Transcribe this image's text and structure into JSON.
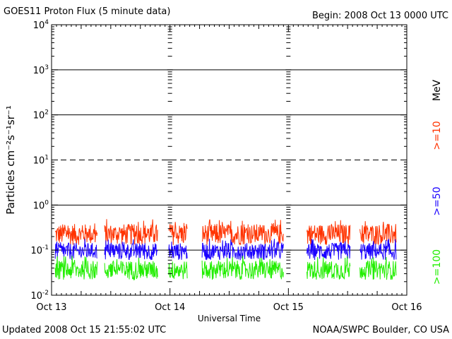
{
  "header": {
    "title": "GOES11 Proton Flux (5 minute data)",
    "begin": "Begin: 2008 Oct 13 0000 UTC"
  },
  "footer": {
    "updated": "Updated 2008 Oct 15 21:55:02 UTC",
    "credit": "NOAA/SWPC Boulder, CO USA"
  },
  "colors": {
    "ge10": "#ff3300",
    "ge50": "#1a00ff",
    "ge100": "#22ee00",
    "frame": "#000000"
  },
  "chart_data": {
    "type": "line",
    "title": "GOES11 Proton Flux (5 minute data)",
    "xlabel": "Universal Time",
    "ylabel": "Particles cm⁻²s⁻¹sr⁻¹",
    "y_scale": "log",
    "ylim": [
      0.01,
      10000
    ],
    "y_ticks": [
      {
        "value": 10000,
        "base": "10",
        "exp": "4"
      },
      {
        "value": 1000,
        "base": "10",
        "exp": "3"
      },
      {
        "value": 100,
        "base": "10",
        "exp": "2"
      },
      {
        "value": 10,
        "base": "10",
        "exp": "1"
      },
      {
        "value": 1,
        "base": "10",
        "exp": "0"
      },
      {
        "value": 0.1,
        "base": "10",
        "exp": "-1"
      },
      {
        "value": 0.01,
        "base": "10",
        "exp": "-2"
      }
    ],
    "xlim": [
      "2008-10-13",
      "2008-10-16"
    ],
    "x_ticks": [
      "Oct 13",
      "Oct 14",
      "Oct 15",
      "Oct 16"
    ],
    "reference_lines": [
      {
        "value": 1000,
        "style": "solid"
      },
      {
        "value": 100,
        "style": "solid"
      },
      {
        "value": 10,
        "style": "dashed"
      },
      {
        "value": 1,
        "style": "solid"
      },
      {
        "value": 0.1,
        "style": "solid"
      }
    ],
    "right_labels": {
      "ge10": ">=10",
      "unit": "MeV",
      "ge50": ">=50",
      "ge100": ">=100"
    },
    "data_segments": [
      [
        "2008-10-13T00:45",
        "2008-10-13T09:15"
      ],
      [
        "2008-10-13T10:45",
        "2008-10-13T21:30"
      ],
      [
        "2008-10-13T23:45",
        "2008-10-14T03:30"
      ],
      [
        "2008-10-14T06:30",
        "2008-10-14T23:00"
      ],
      [
        "2008-10-15T03:45",
        "2008-10-15T12:30"
      ],
      [
        "2008-10-15T14:30",
        "2008-10-15T21:50"
      ]
    ],
    "series": [
      {
        "name": ">=10 MeV",
        "key": "ge10",
        "typical_range": [
          0.13,
          0.5
        ]
      },
      {
        "name": ">=50 MeV",
        "key": "ge50",
        "typical_range": [
          0.06,
          0.18
        ]
      },
      {
        "name": ">=100 MeV",
        "key": "ge100",
        "typical_range": [
          0.022,
          0.075
        ]
      }
    ]
  }
}
